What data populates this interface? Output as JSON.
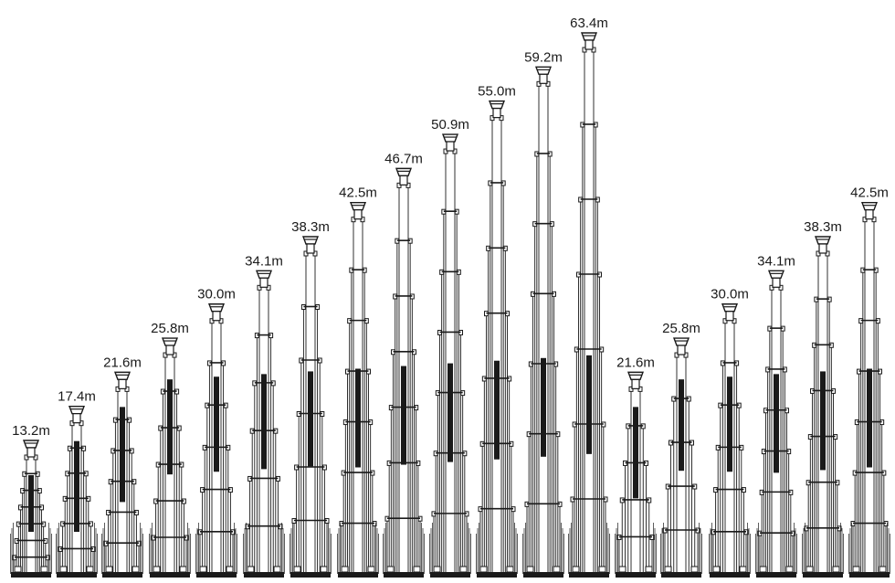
{
  "colors": {
    "ink": "#1a1a1a",
    "background": "#ffffff"
  },
  "masts": [
    {
      "height_label": "13.2m",
      "height_m": 13.2,
      "sections": 7
    },
    {
      "height_label": "17.4m",
      "height_m": 17.4,
      "sections": 6
    },
    {
      "height_label": "21.6m",
      "height_m": 21.6,
      "sections": 6
    },
    {
      "height_label": "25.8m",
      "height_m": 25.8,
      "sections": 6
    },
    {
      "height_label": "30.0m",
      "height_m": 30.0,
      "sections": 6
    },
    {
      "height_label": "34.1m",
      "height_m": 34.1,
      "sections": 6
    },
    {
      "height_label": "38.3m",
      "height_m": 38.3,
      "sections": 6
    },
    {
      "height_label": "42.5m",
      "height_m": 42.5,
      "sections": 7
    },
    {
      "height_label": "46.7m",
      "height_m": 46.7,
      "sections": 7
    },
    {
      "height_label": "50.9m",
      "height_m": 50.9,
      "sections": 7
    },
    {
      "height_label": "55.0m",
      "height_m": 55.0,
      "sections": 7
    },
    {
      "height_label": "59.2m",
      "height_m": 59.2,
      "sections": 7
    },
    {
      "height_label": "63.4m",
      "height_m": 63.4,
      "sections": 7
    },
    {
      "height_label": "21.6m",
      "height_m": 21.6,
      "sections": 5
    },
    {
      "height_label": "25.8m",
      "height_m": 25.8,
      "sections": 5
    },
    {
      "height_label": "30.0m",
      "height_m": 30.0,
      "sections": 6
    },
    {
      "height_label": "34.1m",
      "height_m": 34.1,
      "sections": 7
    },
    {
      "height_label": "38.3m",
      "height_m": 38.3,
      "sections": 7
    },
    {
      "height_label": "42.5m",
      "height_m": 42.5,
      "sections": 7
    }
  ]
}
